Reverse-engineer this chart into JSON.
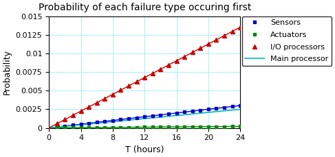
{
  "title": "Probability of each failure type occuring first",
  "xlabel": "T (hours)",
  "ylabel": "Probability",
  "xlim": [
    0,
    24
  ],
  "ylim": [
    0,
    0.015
  ],
  "xticks": [
    0,
    4,
    8,
    12,
    16,
    20,
    24
  ],
  "yticks": [
    0,
    0.0025,
    0.005,
    0.0075,
    0.01,
    0.0125,
    0.015
  ],
  "grid_color": "#aaeeff",
  "background_color": "#ffffff",
  "series": [
    {
      "label": "Sensors",
      "color": "#0000cc",
      "marker": "s",
      "markersize": 3,
      "linewidth": 1.0,
      "slope": 0.000125,
      "use_marker": true
    },
    {
      "label": "Actuators",
      "color": "#008800",
      "marker": "s",
      "markersize": 3,
      "linewidth": 1.0,
      "slope": 8.5e-06,
      "use_marker": true
    },
    {
      "label": "I/O processors",
      "color": "#cc0000",
      "marker": "^",
      "markersize": 4,
      "linewidth": 1.0,
      "slope": 0.000563,
      "use_marker": true
    },
    {
      "label": "Main processor",
      "color": "#00bbbb",
      "marker": null,
      "markersize": 0,
      "linewidth": 1.2,
      "slope": 0.000104,
      "use_marker": false
    }
  ],
  "n_marker_points": 25,
  "n_line_points": 200
}
